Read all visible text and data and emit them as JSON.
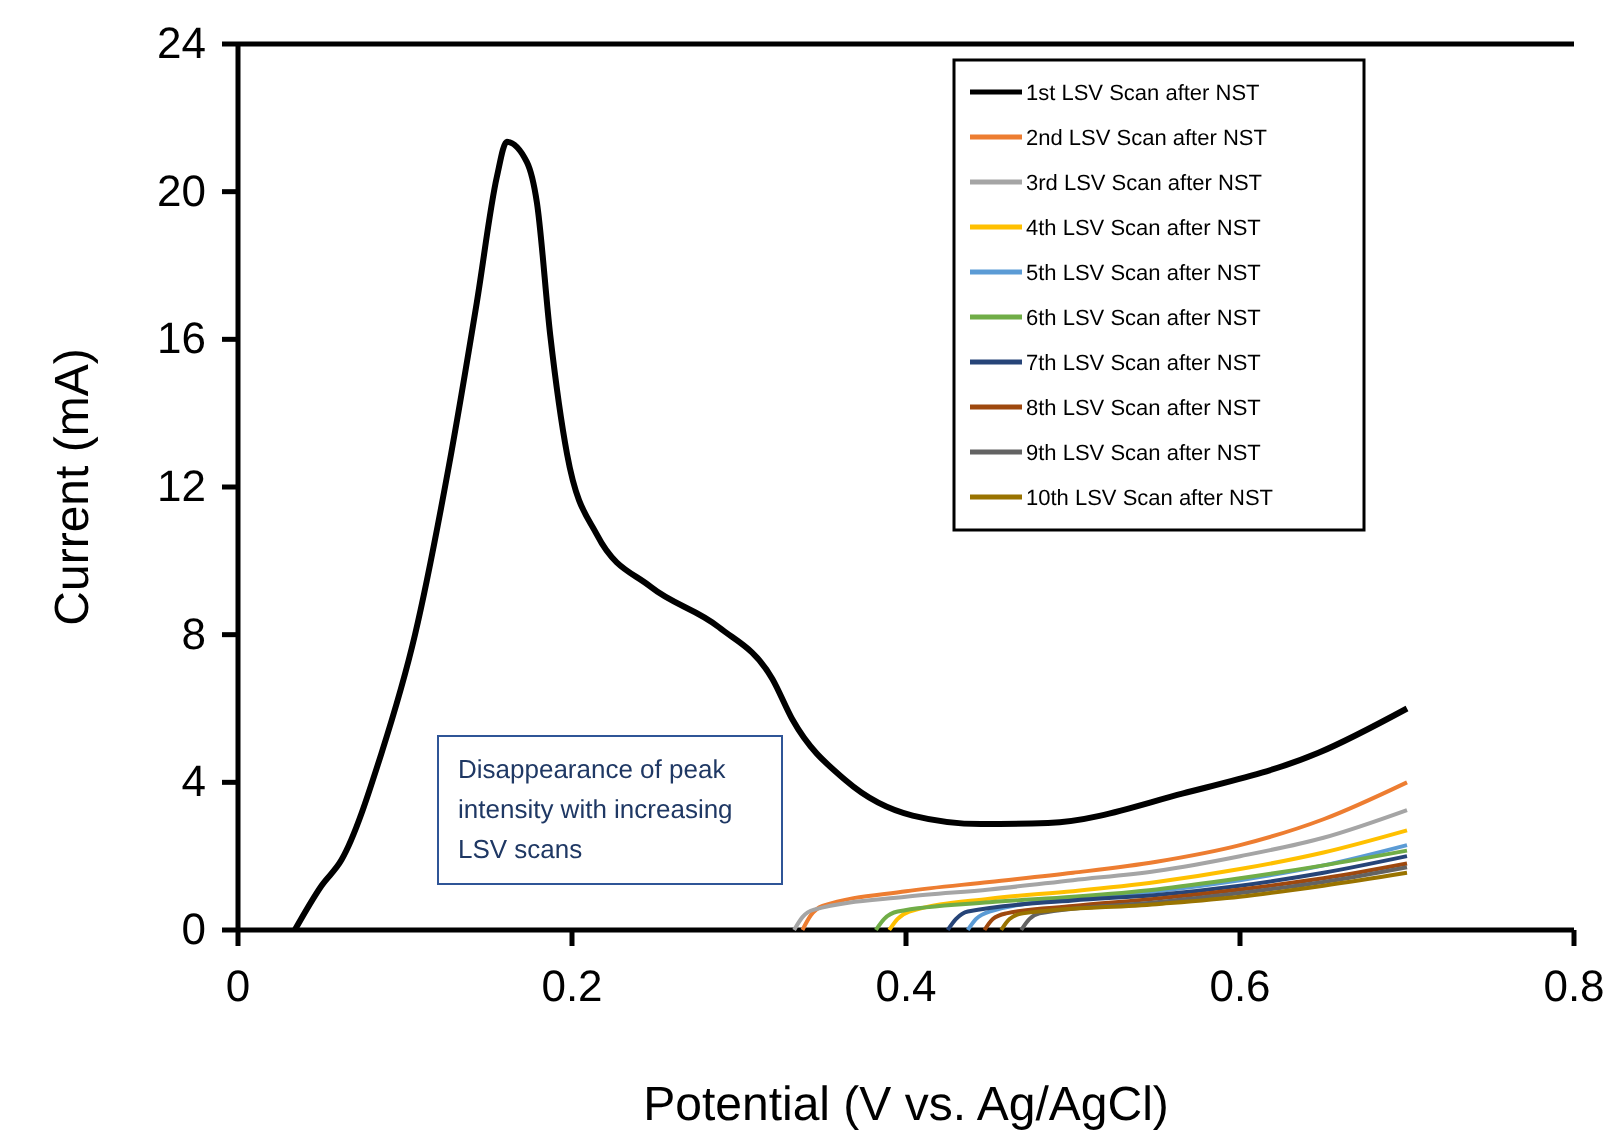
{
  "chart_data": {
    "type": "line",
    "xlabel": "Potential (V vs. Ag/AgCl)",
    "ylabel": "Current (mA)",
    "xlim": [
      0,
      0.8
    ],
    "xticks": [
      0,
      0.2,
      0.4,
      0.6,
      0.8
    ],
    "ylim": [
      0,
      24
    ],
    "yticks": [
      0,
      4,
      8,
      12,
      16,
      20,
      24
    ],
    "grid": false,
    "legend": "top right",
    "marker": "none",
    "line_style": "solid",
    "annotations": [
      "Disappearance of peak intensity with increasing LSV scans"
    ],
    "series": [
      {
        "name": "1st LSV Scan after NST",
        "color": "#000000",
        "x": [
          0.034,
          0.05,
          0.062,
          0.086,
          0.106,
          0.126,
          0.143,
          0.155,
          0.161,
          0.173,
          0.179,
          0.187,
          0.197,
          0.215,
          0.247,
          0.288,
          0.32,
          0.332,
          0.364,
          0.404,
          0.445,
          0.485,
          0.566,
          0.647,
          0.7
        ],
        "values": [
          0,
          1.2,
          1.9,
          4.8,
          8.0,
          12.5,
          17,
          20.4,
          21.35,
          20.8,
          19.7,
          16.1,
          12.9,
          10.7,
          9.3,
          8.2,
          6.8,
          5.7,
          4.05,
          3.1,
          2.87,
          2.9,
          3.7,
          4.8,
          6.0
        ]
      },
      {
        "name": "2nd LSV Scan after NST",
        "color": "#ed7d31",
        "x": [
          0.338,
          0.343,
          0.35,
          0.4,
          0.45,
          0.5,
          0.55,
          0.6,
          0.65,
          0.7
        ],
        "values": [
          0,
          0.4,
          0.65,
          1.05,
          1.3,
          1.55,
          1.85,
          2.3,
          3.0,
          4.0
        ]
      },
      {
        "name": "3rd LSV Scan after NST",
        "color": "#a5a5a5",
        "x": [
          0.333,
          0.338,
          0.345,
          0.4,
          0.45,
          0.5,
          0.55,
          0.6,
          0.65,
          0.7
        ],
        "values": [
          0,
          0.35,
          0.55,
          0.9,
          1.1,
          1.35,
          1.6,
          2.0,
          2.5,
          3.25
        ]
      },
      {
        "name": "4th LSV Scan after NST",
        "color": "#ffc000",
        "x": [
          0.39,
          0.395,
          0.402,
          0.45,
          0.5,
          0.55,
          0.6,
          0.65,
          0.7
        ],
        "values": [
          0,
          0.3,
          0.5,
          0.85,
          1.05,
          1.3,
          1.65,
          2.1,
          2.7
        ]
      },
      {
        "name": "5th LSV Scan after NST",
        "color": "#5b9bd5",
        "x": [
          0.437,
          0.442,
          0.45,
          0.5,
          0.55,
          0.6,
          0.65,
          0.7
        ],
        "values": [
          0,
          0.3,
          0.5,
          0.85,
          1.05,
          1.35,
          1.75,
          2.3
        ]
      },
      {
        "name": "6th LSV Scan after NST",
        "color": "#70ad47",
        "x": [
          0.382,
          0.387,
          0.395,
          0.45,
          0.5,
          0.55,
          0.6,
          0.65,
          0.7
        ],
        "values": [
          0,
          0.3,
          0.5,
          0.75,
          0.9,
          1.1,
          1.4,
          1.75,
          2.15
        ]
      },
      {
        "name": "7th LSV Scan after NST",
        "color": "#264478",
        "x": [
          0.425,
          0.43,
          0.437,
          0.5,
          0.55,
          0.6,
          0.65,
          0.7
        ],
        "values": [
          0,
          0.3,
          0.5,
          0.8,
          0.95,
          1.2,
          1.55,
          2.0
        ]
      },
      {
        "name": "8th LSV Scan after NST",
        "color": "#9e480e",
        "x": [
          0.447,
          0.452,
          0.46,
          0.5,
          0.55,
          0.6,
          0.65,
          0.7
        ],
        "values": [
          0,
          0.3,
          0.45,
          0.65,
          0.85,
          1.1,
          1.4,
          1.8
        ]
      },
      {
        "name": "9th LSV Scan after NST",
        "color": "#636363",
        "x": [
          0.469,
          0.474,
          0.48,
          0.55,
          0.6,
          0.65,
          0.7
        ],
        "values": [
          0,
          0.3,
          0.45,
          0.75,
          1.0,
          1.3,
          1.7
        ]
      },
      {
        "name": "10th LSV Scan after NST",
        "color": "#997300",
        "x": [
          0.457,
          0.462,
          0.47,
          0.55,
          0.6,
          0.65,
          0.7
        ],
        "values": [
          0,
          0.3,
          0.45,
          0.7,
          0.9,
          1.2,
          1.55
        ]
      }
    ]
  }
}
